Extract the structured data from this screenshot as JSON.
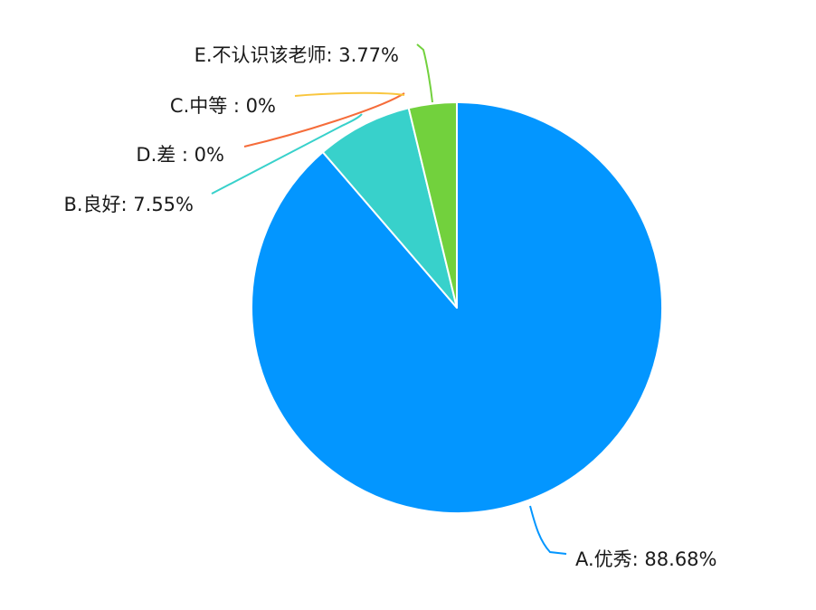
{
  "chart_data": {
    "type": "pie",
    "slices": [
      {
        "label": "A.优秀",
        "value": 88.68,
        "display": "A.优秀: 88.68%",
        "color": "#0396FF"
      },
      {
        "label": "B.良好",
        "value": 7.55,
        "display": "B.良好: 7.55%",
        "color": "#38D1CB"
      },
      {
        "label": "D.差",
        "value": 0,
        "display": "D.差 : 0%",
        "color": "#F56C3A"
      },
      {
        "label": "C.中等",
        "value": 0,
        "display": "C.中等 : 0%",
        "color": "#F9C63E"
      },
      {
        "label": "E.不认识该老师",
        "value": 3.77,
        "display": "E.不认识该老师: 3.77%",
        "color": "#72D13D"
      }
    ]
  }
}
